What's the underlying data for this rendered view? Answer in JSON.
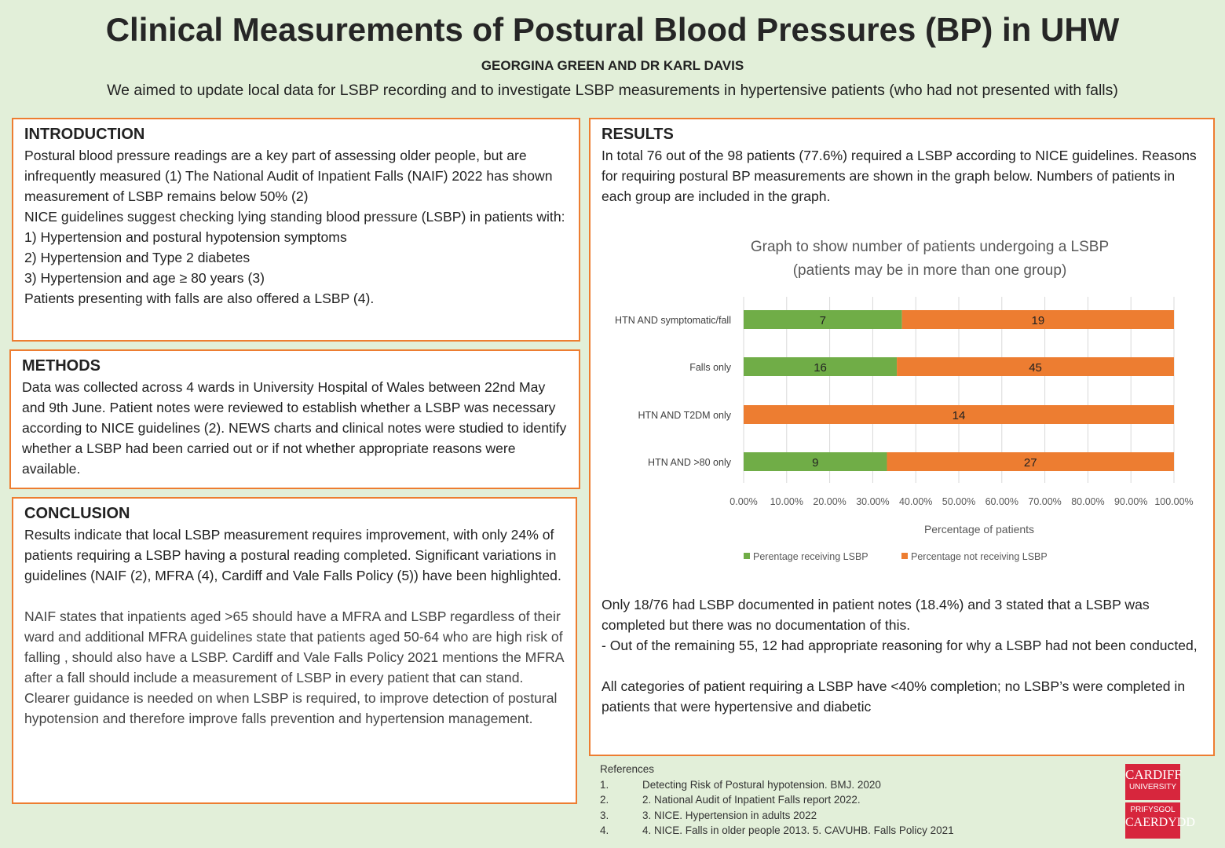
{
  "header": {
    "title": "Clinical Measurements of Postural Blood Pressures (BP) in UHW",
    "authors": "GEORGINA GREEN AND DR KARL DAVIS",
    "aim": "We aimed to update local data for LSBP recording and to investigate LSBP measurements in hypertensive patients (who had not presented with falls)"
  },
  "introduction": {
    "heading": "INTRODUCTION",
    "lines": [
      "Postural blood pressure readings are a key part of assessing older people, but are infrequently measured (1) The National Audit of Inpatient Falls (NAIF) 2022 has shown measurement of LSBP remains below 50% (2)",
      "NICE guidelines suggest checking lying standing blood pressure (LSBP) in patients with:",
      "1) Hypertension and postural hypotension symptoms",
      "2) Hypertension and Type 2 diabetes",
      "3) Hypertension and age ≥ 80 years (3)",
      "Patients presenting with falls are also offered a LSBP (4)."
    ]
  },
  "methods": {
    "heading": "METHODS",
    "text": "Data was collected across 4 wards in University Hospital of Wales between 22nd May and 9th June. Patient notes were reviewed to establish whether a LSBP was necessary according to NICE guidelines (2). NEWS charts and clinical notes were studied to identify whether a LSBP had been carried out or if not whether appropriate reasons were available."
  },
  "conclusion": {
    "heading": "CONCLUSION",
    "p1": "Results indicate that local LSBP measurement requires improvement, with only 24% of patients requiring a LSBP having a postural reading completed. Significant variations in guidelines (NAIF (2), MFRA (4), Cardiff and Vale Falls Policy (5)) have been highlighted.",
    "p2": "NAIF states that inpatients aged >65 should have a MFRA and LSBP regardless of their ward  and additional MFRA guidelines state that patients aged 50-64 who are high risk of falling , should also have a LSBP. Cardiff and Vale Falls Policy 2021 mentions the MFRA after a fall should include a measurement of LSBP in every patient that can stand. Clearer guidance is needed on when LSBP is required, to improve detection of postural hypotension and therefore improve falls prevention and hypertension management."
  },
  "results": {
    "heading": "RESULTS",
    "p1": "In total 76 out of the 98 patients (77.6%) required a LSBP according to NICE guidelines. Reasons for requiring postural BP measurements are shown in the graph below. Numbers of patients in each group are included in the graph.",
    "p2": "Only 18/76 had LSBP documented in patient notes (18.4%) and 3 stated that a LSBP was completed but there was no documentation of this.",
    "p3": "- Out of the remaining 55, 12 had appropriate reasoning for why a LSBP had not been conducted,",
    "p4": "All categories of patient requiring a LSBP have <40% completion; no LSBP’s were completed in patients that were hypertensive and diabetic"
  },
  "chart_data": {
    "type": "bar",
    "stacked": true,
    "orientation": "horizontal",
    "title": "Graph to show number of patients undergoing a LSBP",
    "subtitle": "(patients may be in more than one group)",
    "categories": [
      "HTN AND symptomatic/fall",
      "Falls only",
      "HTN AND T2DM only",
      "HTN AND >80 only"
    ],
    "series": [
      {
        "name": "Perentage receiving LSBP",
        "color": "#70ad47",
        "values": [
          36.8,
          35.6,
          0,
          33.3
        ],
        "labels": [
          "7",
          "16",
          "",
          "9"
        ]
      },
      {
        "name": "Percentage not receiving LSBP",
        "color": "#ed7d31",
        "values": [
          63.2,
          64.4,
          100,
          66.7
        ],
        "labels": [
          "19",
          "45",
          "14",
          "27"
        ]
      }
    ],
    "xlabel": "Percentage of patients",
    "xlim": [
      0,
      100
    ],
    "xticks": [
      "0.00%",
      "10.00%",
      "20.00%",
      "30.00%",
      "40.00%",
      "50.00%",
      "60.00%",
      "70.00%",
      "80.00%",
      "90.00%",
      "100.00%"
    ],
    "grid": true,
    "legend": "bottom"
  },
  "references": {
    "heading": "References",
    "items": [
      {
        "n": "1.",
        "t": "Detecting Risk of Postural hypotension. BMJ. 2020"
      },
      {
        "n": "2.",
        "t": "2. National Audit of Inpatient Falls report 2022."
      },
      {
        "n": "3.",
        "t": "3. NICE. Hypertension in adults 2022"
      },
      {
        "n": "4.",
        "t": "4. NICE. Falls in older people 2013. 5. CAVUHB. Falls Policy 2021"
      }
    ]
  },
  "logo": {
    "line1": "CARDIFF",
    "line2": "UNIVERSITY",
    "line3": "PRIFYSGOL",
    "line4": "CAERDYDD"
  }
}
